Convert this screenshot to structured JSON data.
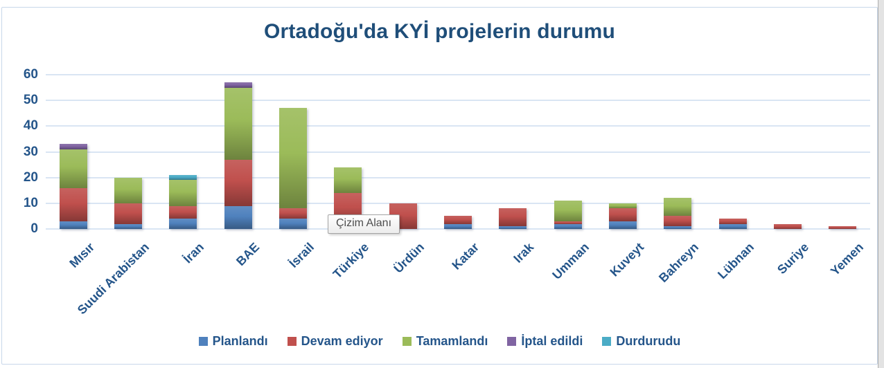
{
  "chart_data": {
    "type": "bar",
    "stacked": true,
    "title": "Ortadoğu'da KYİ projelerin durumu",
    "categories": [
      "Mısır",
      "Suudi Arabistan",
      "İran",
      "BAE",
      "İsrail",
      "Türkiye",
      "Ürdün",
      "Katar",
      "Irak",
      "Umman",
      "Kuveyt",
      "Bahreyn",
      "Lübnan",
      "Suriye",
      "Yemen"
    ],
    "series": [
      {
        "name": "Planlandı",
        "color": "#4F81BD",
        "values": [
          3,
          2,
          4,
          9,
          4,
          2,
          0,
          2,
          1,
          2,
          3,
          1,
          2,
          0,
          0
        ]
      },
      {
        "name": "Devam ediyor",
        "color": "#C0504D",
        "values": [
          13,
          8,
          5,
          18,
          4,
          12,
          10,
          3,
          7,
          1,
          5,
          4,
          2,
          2,
          1
        ]
      },
      {
        "name": "Tamamlandı",
        "color": "#9BBB59",
        "values": [
          15,
          10,
          10,
          28,
          39,
          10,
          0,
          0,
          0,
          8,
          2,
          7,
          0,
          0,
          0
        ]
      },
      {
        "name": "İptal edildi",
        "color": "#8064A2",
        "values": [
          2,
          0,
          0,
          2,
          0,
          0,
          0,
          0,
          0,
          0,
          0,
          0,
          0,
          0,
          0
        ]
      },
      {
        "name": "Durdurudu",
        "color": "#4BACC6",
        "values": [
          0,
          0,
          2,
          0,
          0,
          0,
          0,
          0,
          0,
          0,
          0,
          0,
          0,
          0,
          0
        ]
      }
    ],
    "totals": [
      33,
      20,
      21,
      57,
      47,
      24,
      10,
      5,
      8,
      11,
      10,
      12,
      4,
      2,
      1
    ],
    "ylim": [
      0,
      60
    ],
    "yticks": [
      0,
      10,
      20,
      30,
      40,
      50,
      60
    ],
    "grid": true,
    "legend_position": "bottom",
    "colors": {
      "title_text": "#1F4E79",
      "axis_text": "#24558A",
      "gridline": "#D9E5F3",
      "frame_border": "#C8D7EA"
    }
  },
  "tooltip": {
    "label": "Çizim Alanı"
  }
}
